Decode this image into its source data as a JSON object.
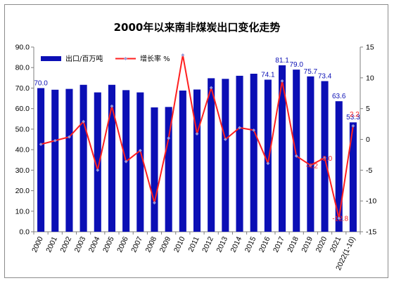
{
  "chart_data": {
    "type": "bar",
    "title": "2000年以来南非煤炭出口变化走势",
    "categories": [
      "2000",
      "2001",
      "2002",
      "2003",
      "2004",
      "2005",
      "2006",
      "2007",
      "2008",
      "2009",
      "2010",
      "2011",
      "2012",
      "2013",
      "2014",
      "2015",
      "2016",
      "2017",
      "2018",
      "2019",
      "2020",
      "2021",
      "2022(1-10)"
    ],
    "series": [
      {
        "name": "出口/百万吨",
        "kind": "bar",
        "axis": "left",
        "color": "#0b0fb5",
        "values": [
          70.0,
          69.2,
          69.6,
          71.6,
          67.9,
          71.6,
          69.0,
          67.9,
          60.6,
          60.8,
          68.8,
          69.3,
          74.8,
          74.5,
          76.0,
          77.0,
          74.1,
          81.1,
          79.0,
          75.7,
          73.4,
          63.6,
          53.3
        ]
      },
      {
        "name": "增长率 %",
        "kind": "line",
        "axis": "right",
        "color": "#ff1f1f",
        "marker_color": "#9a9ad6",
        "values": [
          -0.8,
          -0.2,
          0.4,
          2.9,
          -5.0,
          5.4,
          -3.6,
          -1.8,
          -10.3,
          0.2,
          13.7,
          0.9,
          8.4,
          0.0,
          1.9,
          1.5,
          -3.9,
          9.5,
          -2.7,
          -4.2,
          -3.0,
          -12.8,
          2.2
        ]
      }
    ],
    "y_left": {
      "min": 0,
      "max": 90,
      "step": 10,
      "tick_labels": [
        "0.0",
        "10.0",
        "20.0",
        "30.0",
        "40.0",
        "50.0",
        "60.0",
        "70.0",
        "80.0",
        "90.0"
      ]
    },
    "y_right": {
      "min": -15,
      "max": 15,
      "step": 5,
      "tick_labels": [
        "-15",
        "-10",
        "-5",
        "0",
        "5",
        "10",
        "15"
      ]
    },
    "bar_labels": [
      {
        "index": 0,
        "text": "70.0"
      },
      {
        "index": 16,
        "text": "74.1"
      },
      {
        "index": 17,
        "text": "81.1"
      },
      {
        "index": 18,
        "text": "79.0"
      },
      {
        "index": 19,
        "text": "75.7"
      },
      {
        "index": 20,
        "text": "73.4"
      },
      {
        "index": 21,
        "text": "63.6"
      },
      {
        "index": 22,
        "text": "53.3"
      }
    ],
    "line_labels": [
      {
        "index": 19,
        "text": "-4.2"
      },
      {
        "index": 20,
        "text": "-3.0"
      },
      {
        "index": 21,
        "text": "-12.8"
      },
      {
        "index": 22,
        "text": "2.2"
      }
    ],
    "legend_position": "top-left",
    "grid": false
  }
}
